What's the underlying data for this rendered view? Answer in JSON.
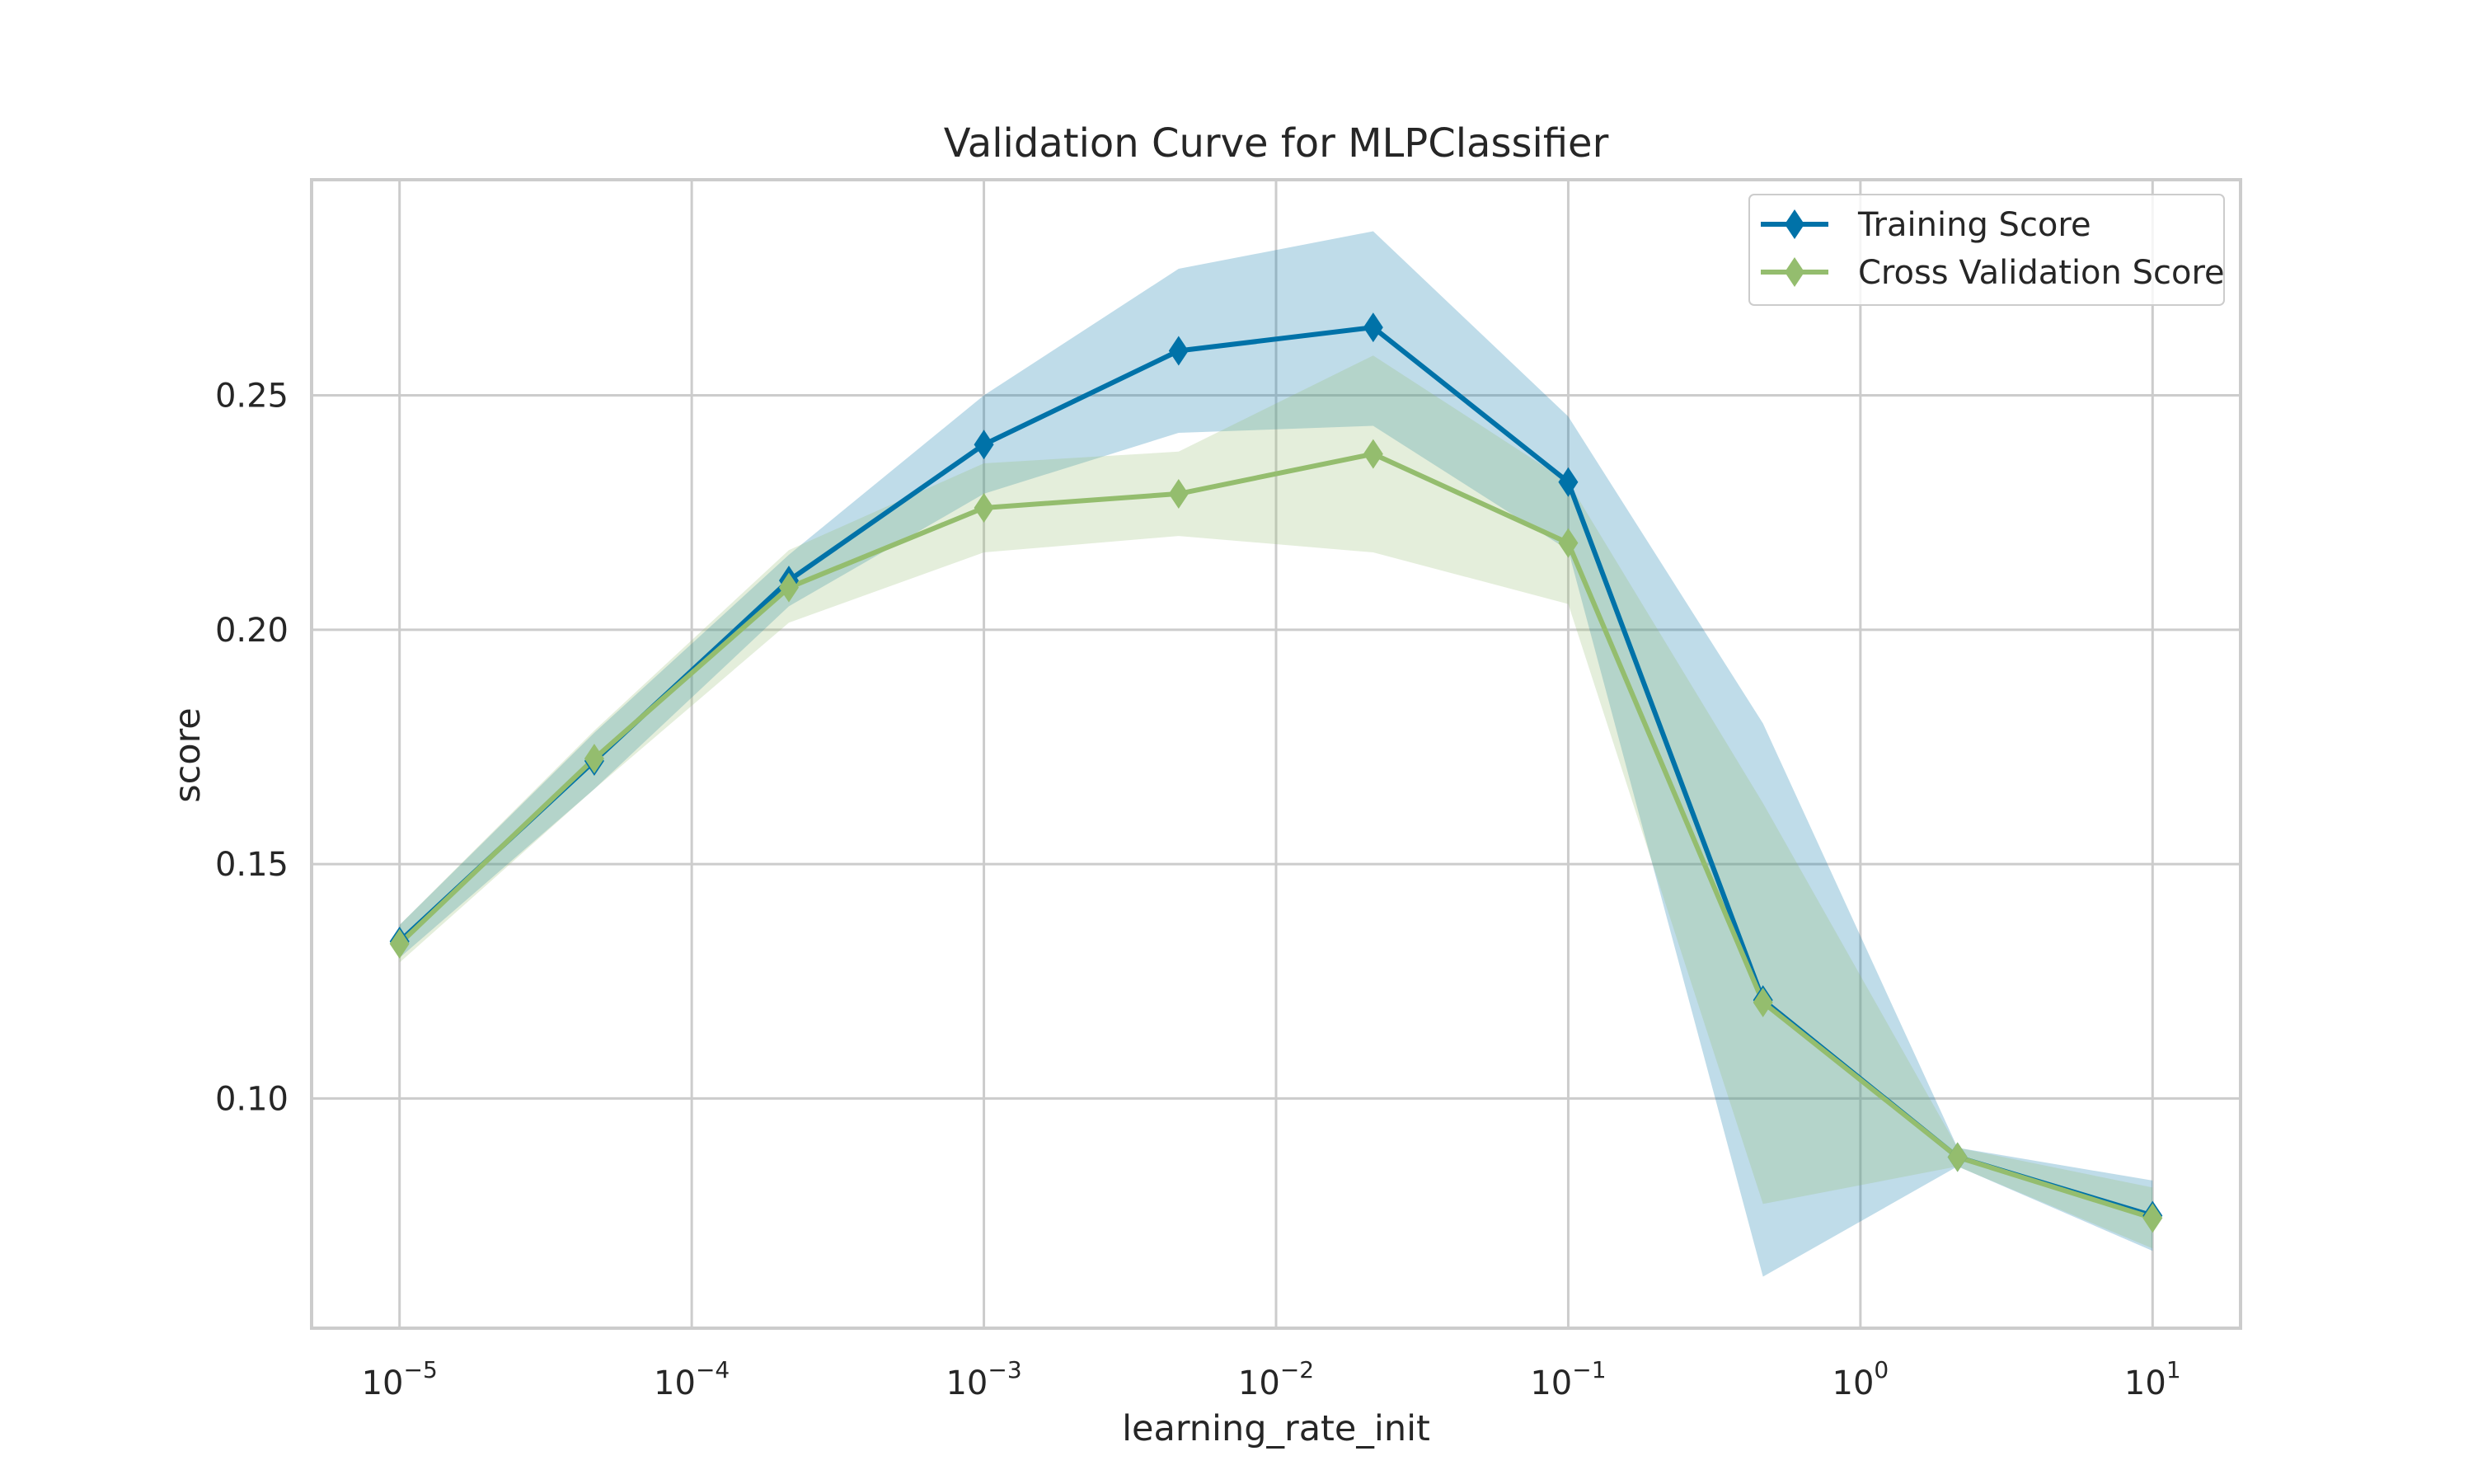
{
  "chart_data": {
    "type": "line",
    "title": "Validation Curve for MLPClassifier",
    "xlabel": "learning_rate_init",
    "ylabel": "score",
    "x_scale": "log",
    "x_ticks": [
      {
        "value": 1e-05,
        "base": "10",
        "exp": "−5"
      },
      {
        "value": 0.0001,
        "base": "10",
        "exp": "−4"
      },
      {
        "value": 0.001,
        "base": "10",
        "exp": "−3"
      },
      {
        "value": 0.01,
        "base": "10",
        "exp": "−2"
      },
      {
        "value": 0.1,
        "base": "10",
        "exp": "−1"
      },
      {
        "value": 1,
        "base": "10",
        "exp": "0"
      },
      {
        "value": 10,
        "base": "10",
        "exp": "1"
      }
    ],
    "y_ticks": [
      {
        "value": 0.1,
        "label": "0.10"
      },
      {
        "value": 0.15,
        "label": "0.15"
      },
      {
        "value": 0.2,
        "label": "0.20"
      },
      {
        "value": 0.25,
        "label": "0.25"
      }
    ],
    "xlim": [
      5e-06,
      20
    ],
    "ylim": [
      0.051,
      0.296
    ],
    "grid": true,
    "legend_position": "top-right",
    "x": [
      1e-05,
      4.64e-05,
      0.000215,
      0.001,
      0.00464,
      0.0215,
      0.1,
      0.464,
      2.15,
      10
    ],
    "series": [
      {
        "name": "Training Score",
        "color": "#0072a8",
        "fill_color": "#a9cfe3",
        "values": [
          0.1335,
          0.172,
          0.2105,
          0.2395,
          0.2595,
          0.2645,
          0.2315,
          0.121,
          0.0875,
          0.075
        ],
        "lower": [
          0.13,
          0.166,
          0.205,
          0.229,
          0.242,
          0.2435,
          0.217,
          0.062,
          0.0855,
          0.0675
        ],
        "upper": [
          0.137,
          0.178,
          0.216,
          0.25,
          0.277,
          0.285,
          0.2455,
          0.18,
          0.0895,
          0.0825
        ]
      },
      {
        "name": "Cross Validation Score",
        "color": "#94bd6e",
        "fill_color": "#d9e8c6",
        "values": [
          0.133,
          0.1725,
          0.209,
          0.226,
          0.229,
          0.2375,
          0.2185,
          0.1205,
          0.0875,
          0.0745
        ],
        "lower": [
          0.129,
          0.166,
          0.2015,
          0.2165,
          0.22,
          0.2165,
          0.2055,
          0.0775,
          0.0855,
          0.068
        ],
        "upper": [
          0.137,
          0.1785,
          0.217,
          0.2355,
          0.238,
          0.2585,
          0.2315,
          0.163,
          0.0895,
          0.081
        ]
      }
    ]
  }
}
